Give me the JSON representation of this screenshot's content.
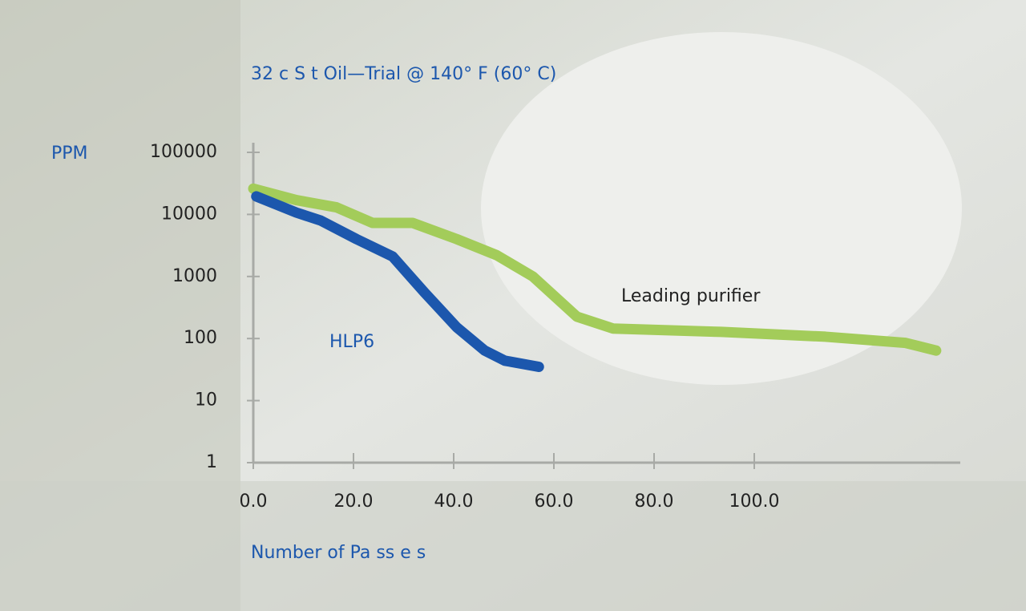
{
  "chart_data": {
    "type": "line",
    "title": "32 c S t Oil—Trial @ 140° F (60° C)",
    "y_label": "PPM",
    "x_label": "Number of Pa ss e s",
    "log_y": true,
    "xlim": [
      0,
      140
    ],
    "ylim": [
      1,
      100000
    ],
    "xticks": [
      {
        "value": 0,
        "label": "0.0"
      },
      {
        "value": 20,
        "label": "20.0"
      },
      {
        "value": 40,
        "label": "40.0"
      },
      {
        "value": 60,
        "label": "60.0"
      },
      {
        "value": 80,
        "label": "80.0"
      },
      {
        "value": 100,
        "label": "100.0"
      }
    ],
    "yticks": [
      1,
      10,
      100,
      1000,
      10000,
      100000
    ],
    "series": [
      {
        "name": "Leading purifier",
        "color": "#a3cc5a",
        "x": [
          0,
          8.6,
          16.6,
          23.8,
          31.8,
          40.6,
          48.6,
          55.8,
          64.6,
          71.8,
          93.4,
          114.2,
          130.2,
          136.3
        ],
        "values": [
          26000,
          17000,
          13000,
          7300,
          7300,
          4000,
          2200,
          1000,
          225,
          145,
          128,
          107,
          85,
          64
        ]
      },
      {
        "name": "HLP6",
        "color": "#1c57ad",
        "x": [
          0.6,
          8.6,
          13.4,
          20.6,
          27.8,
          34.2,
          40.6,
          46.2,
          50.2,
          57
        ],
        "values": [
          19500,
          10700,
          8000,
          4000,
          2100,
          550,
          152,
          64,
          44,
          35
        ]
      }
    ]
  }
}
